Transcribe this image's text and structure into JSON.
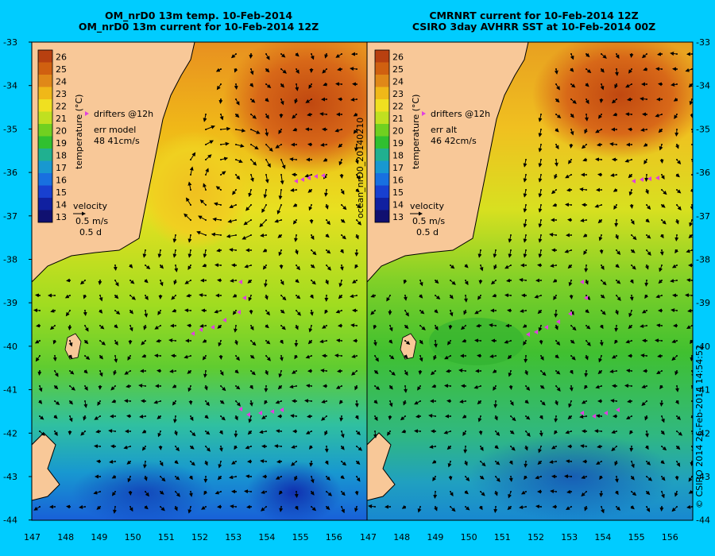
{
  "panels": [
    {
      "id": "left",
      "title_line1": "OM_nrD0 13m temp. 10-Feb-2014",
      "title_line2": "OM_nrD0 13m current for 10-Feb-2014 12Z",
      "drifters_label": "drifters @12h",
      "err_label": "err model",
      "err_value": "48 41cm/s",
      "velocity_label": "velocity",
      "velocity_scale": "0.5 m/s",
      "velocity_time": "0.5 d"
    },
    {
      "id": "right",
      "title_line1": "CMRNRT current for 10-Feb-2014 12Z",
      "title_line2": "CSIRO 3day AVHRR SST at 10-Feb-2014 00Z",
      "drifters_label": "drifters @12h",
      "err_label": "err alt",
      "err_value": "46 42cm/s",
      "velocity_label": "velocity",
      "velocity_scale": "0.5 m/s",
      "velocity_time": "0.5 d"
    }
  ],
  "colorbar": {
    "axis_label": "temperature (°C)",
    "ticks": [
      "26",
      "25",
      "24",
      "23",
      "22",
      "21",
      "20",
      "19",
      "18",
      "17",
      "16",
      "15",
      "14",
      "13"
    ],
    "colors": [
      "#b84010",
      "#d06010",
      "#e08818",
      "#f0b818",
      "#f0e020",
      "#c0e020",
      "#70d020",
      "#30c030",
      "#20b090",
      "#1898d0",
      "#1870e0",
      "#1840d0",
      "#1020a0",
      "#101070"
    ]
  },
  "lat_ticks": [
    "-33",
    "-34",
    "-35",
    "-36",
    "-37",
    "-38",
    "-39",
    "-40",
    "-41",
    "-42",
    "-43",
    "-44"
  ],
  "lon_ticks": [
    "147",
    "148",
    "149",
    "150",
    "151",
    "152",
    "153",
    "154",
    "155",
    "156"
  ],
  "side_label_mid": "ocean_nrD0_20140210",
  "side_label_right": "© CSIRO 2014   26-Feb-2014 14:54:52",
  "colors": {
    "background": "#00ccff",
    "land": "#f8c898",
    "drifter": "#e040e0"
  }
}
